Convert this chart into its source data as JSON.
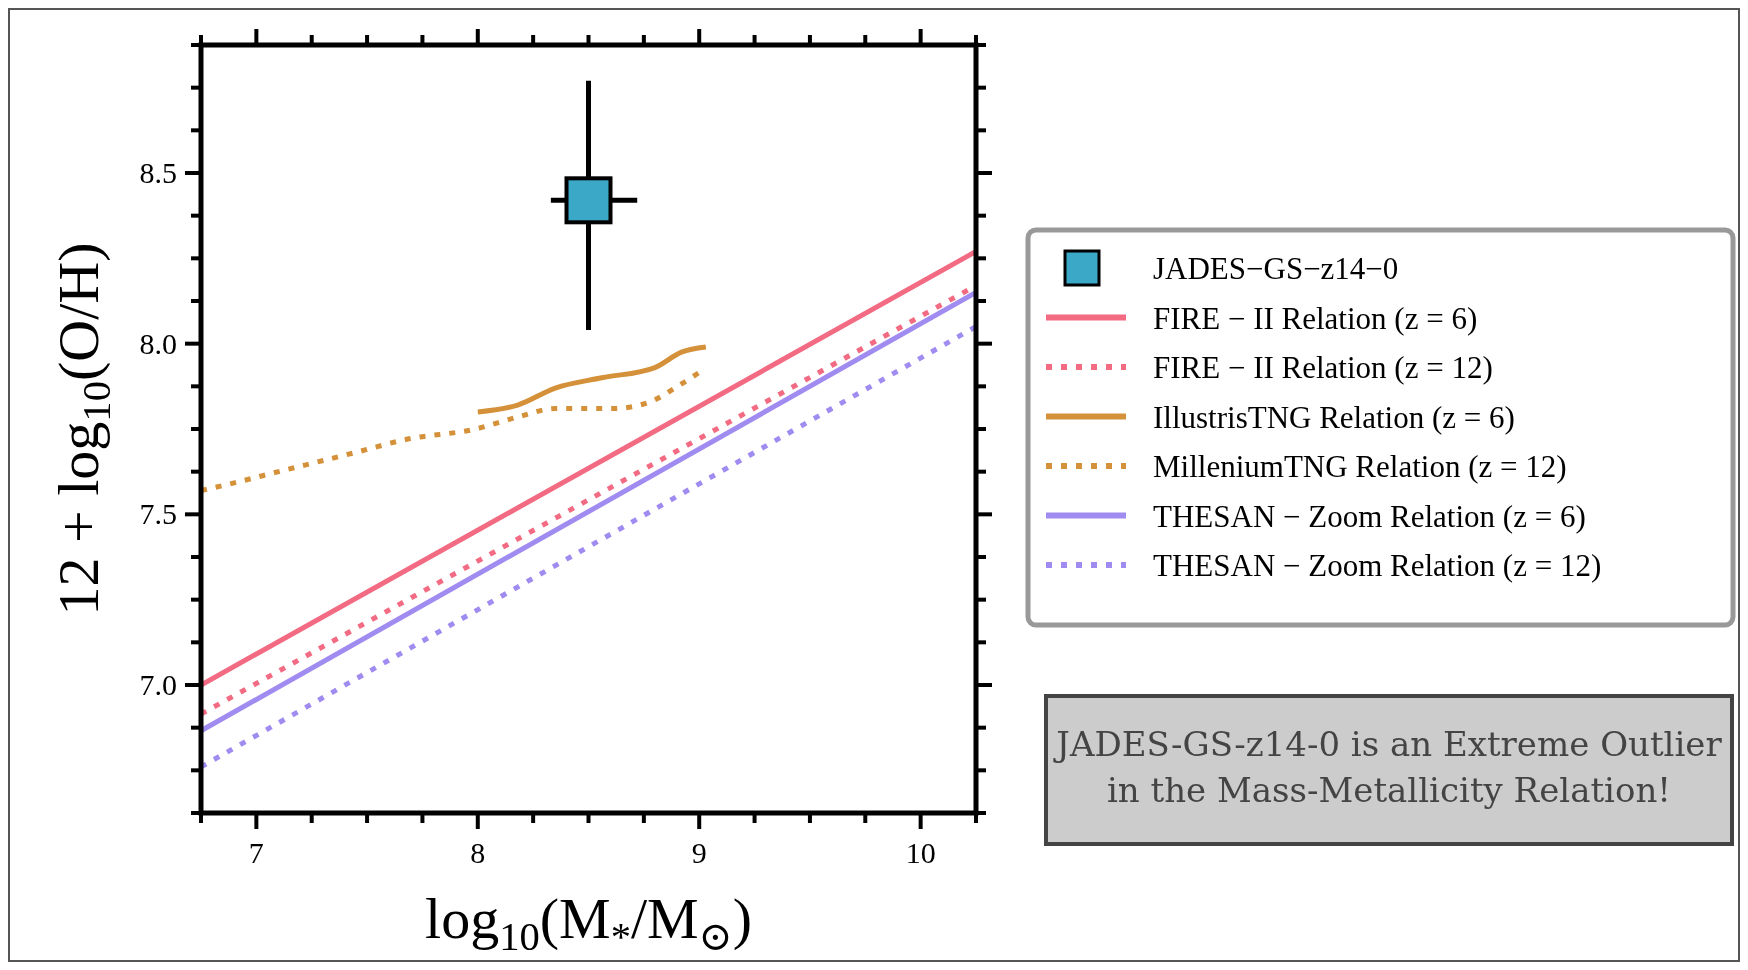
{
  "chart_data": {
    "type": "line",
    "xlabel": "log$_{10}$(M$_{*}$/M$_{⊙}$)",
    "ylabel": "12 + log$_{10}$(O/H)",
    "xlim": [
      6.75,
      10.25
    ],
    "ylim": [
      6.625,
      8.875
    ],
    "xticks": [
      {
        "value": 6.75,
        "label": null
      },
      7,
      {
        "value": 7.25,
        "label": null
      },
      {
        "value": 7.5,
        "label": null
      },
      {
        "value": 7.75,
        "label": null
      },
      8,
      {
        "value": 8.25,
        "label": null
      },
      {
        "value": 8.5,
        "label": null
      },
      {
        "value": 8.75,
        "label": null
      },
      9,
      {
        "value": 9.25,
        "label": null
      },
      {
        "value": 9.5,
        "label": null
      },
      {
        "value": 9.75,
        "label": null
      },
      10,
      {
        "value": 10.25,
        "label": null
      }
    ],
    "yticks": [
      {
        "value": 6.625,
        "label": null
      },
      {
        "value": 6.75,
        "label": null
      },
      {
        "value": 6.875,
        "label": null
      },
      {
        "value": 7.0,
        "label": "7.0"
      },
      {
        "value": 7.125,
        "label": null
      },
      {
        "value": 7.25,
        "label": null
      },
      {
        "value": 7.375,
        "label": null
      },
      {
        "value": 7.5,
        "label": "7.5"
      },
      {
        "value": 7.625,
        "label": null
      },
      {
        "value": 7.75,
        "label": null
      },
      {
        "value": 7.875,
        "label": null
      },
      {
        "value": 8.0,
        "label": "8.0"
      },
      {
        "value": 8.125,
        "label": null
      },
      {
        "value": 8.25,
        "label": null
      },
      {
        "value": 8.375,
        "label": null
      },
      {
        "value": 8.5,
        "label": "8.5"
      },
      {
        "value": 8.625,
        "label": null
      },
      {
        "value": 8.75,
        "label": null
      },
      {
        "value": 8.875,
        "label": null
      }
    ],
    "legend": "right",
    "grid": false,
    "series": [
      {
        "name": "JADES−GS−z14−0",
        "type": "scatter",
        "marker": "square",
        "color": "#3aa8c6",
        "x": [
          8.5
        ],
        "values": [
          8.42
        ],
        "errors": [
          [
            8.04,
            8.77
          ]
        ],
        "xerrors": [
          [
            8.33,
            8.72
          ]
        ]
      },
      {
        "name": "FIRE − II Relation (z = 6)",
        "color": "#f26b83",
        "line_style": "solid",
        "x": [
          6.75,
          10.25
        ],
        "values": [
          7.0,
          8.27
        ]
      },
      {
        "name": "FIRE − II Relation (z = 12)",
        "color": "#f26b83",
        "line_style": "dotted",
        "x": [
          6.75,
          10.25
        ],
        "values": [
          6.915,
          8.17
        ]
      },
      {
        "name": "IllustrisTNG Relation (z = 6)",
        "color": "#d4913a",
        "line_style": "solid",
        "x": [
          8.0,
          8.18,
          8.35,
          8.56,
          8.8,
          8.92,
          9.03
        ],
        "values": [
          7.8,
          7.82,
          7.87,
          7.9,
          7.93,
          7.975,
          7.99
        ]
      },
      {
        "name": "MilleniumTNG Relation (z = 12)",
        "color": "#d4913a",
        "line_style": "dotted",
        "x": [
          6.75,
          6.8,
          7.13,
          7.44,
          7.68,
          7.99,
          8.18,
          8.35,
          8.61,
          8.78,
          8.89,
          9.01
        ],
        "values": [
          7.57,
          7.577,
          7.63,
          7.68,
          7.72,
          7.75,
          7.785,
          7.81,
          7.81,
          7.83,
          7.87,
          7.92
        ]
      },
      {
        "name": "THESAN − Zoom Relation (z = 6)",
        "color": "#a08cf0",
        "line_style": "solid",
        "x": [
          6.75,
          10.25
        ],
        "values": [
          6.866,
          8.15
        ]
      },
      {
        "name": "THESAN − Zoom Relation (z = 12)",
        "color": "#a08cf0",
        "line_style": "dotted",
        "x": [
          6.75,
          10.25
        ],
        "values": [
          6.76,
          8.05
        ]
      }
    ],
    "annotations": [
      "JADES-GS-z14-0 is an Extreme Outlier in the Mass-Metallicity Relation!"
    ]
  }
}
